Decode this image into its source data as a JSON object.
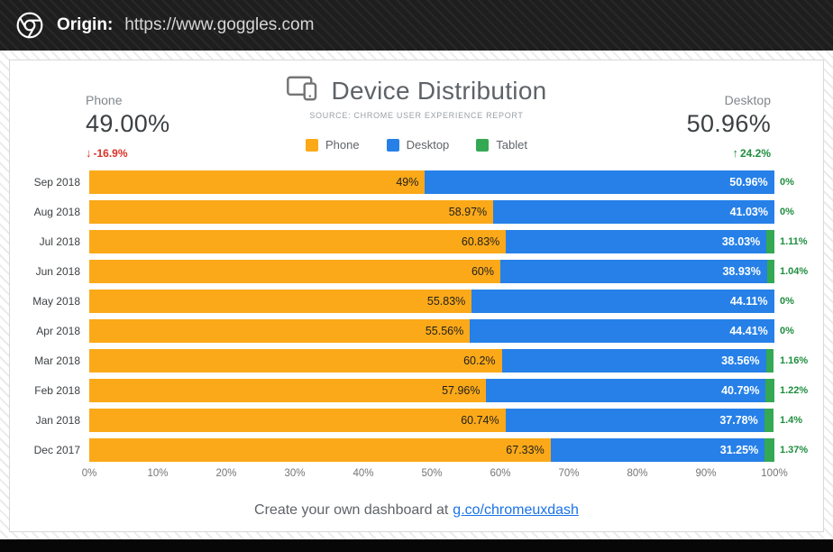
{
  "browser": {
    "origin_label": "Origin:",
    "origin_url": "https://www.goggles.com"
  },
  "header": {
    "title": "Device Distribution",
    "source": "SOURCE: CHROME USER EXPERIENCE REPORT"
  },
  "stats": {
    "phone": {
      "label": "Phone",
      "value": "49.00%",
      "delta": "-16.9%",
      "arrow": "↓",
      "direction": "down",
      "color": "#d93025"
    },
    "desktop": {
      "label": "Desktop",
      "value": "50.96%",
      "delta": "24.2%",
      "arrow": "↑",
      "direction": "up",
      "color": "#1e8e3e"
    }
  },
  "legend": [
    {
      "label": "Phone",
      "color": "#FBA919"
    },
    {
      "label": "Desktop",
      "color": "#2680E8"
    },
    {
      "label": "Tablet",
      "color": "#34A853"
    }
  ],
  "chart_data": {
    "type": "bar",
    "orientation": "horizontal",
    "stacked": true,
    "title": "Device Distribution",
    "xlabel": "",
    "ylabel": "",
    "xlim": [
      0,
      100
    ],
    "grid": false,
    "legend_position": "top-center",
    "categories": [
      "Sep 2018",
      "Aug 2018",
      "Jul 2018",
      "Jun 2018",
      "May 2018",
      "Apr 2018",
      "Mar 2018",
      "Feb 2018",
      "Jan 2018",
      "Dec 2017"
    ],
    "series": [
      {
        "name": "Phone",
        "color": "#FBA919",
        "label_position": "inside",
        "values": [
          49,
          58.97,
          60.83,
          60,
          55.83,
          55.56,
          60.2,
          57.96,
          60.74,
          67.33
        ],
        "labels": [
          "49%",
          "58.97%",
          "60.83%",
          "60%",
          "55.83%",
          "55.56%",
          "60.2%",
          "57.96%",
          "60.74%",
          "67.33%"
        ]
      },
      {
        "name": "Desktop",
        "color": "#2680E8",
        "label_position": "inside",
        "values": [
          50.96,
          41.03,
          38.03,
          38.93,
          44.11,
          44.41,
          38.56,
          40.79,
          37.78,
          31.25
        ],
        "labels": [
          "50.96%",
          "41.03%",
          "38.03%",
          "38.93%",
          "44.11%",
          "44.41%",
          "38.56%",
          "40.79%",
          "37.78%",
          "31.25%"
        ]
      },
      {
        "name": "Tablet",
        "color": "#34A853",
        "label_position": "outside",
        "values": [
          0,
          0,
          1.11,
          1.04,
          0,
          0,
          1.16,
          1.22,
          1.4,
          1.37
        ],
        "labels": [
          "0%",
          "0%",
          "1.11%",
          "1.04%",
          "0%",
          "0%",
          "1.16%",
          "1.22%",
          "1.4%",
          "1.37%"
        ]
      }
    ],
    "x_ticks": [
      "0%",
      "10%",
      "20%",
      "30%",
      "40%",
      "50%",
      "60%",
      "70%",
      "80%",
      "90%",
      "100%"
    ]
  },
  "footer": {
    "text": "Create your own dashboard at",
    "link_text": "g.co/chromeuxdash"
  }
}
